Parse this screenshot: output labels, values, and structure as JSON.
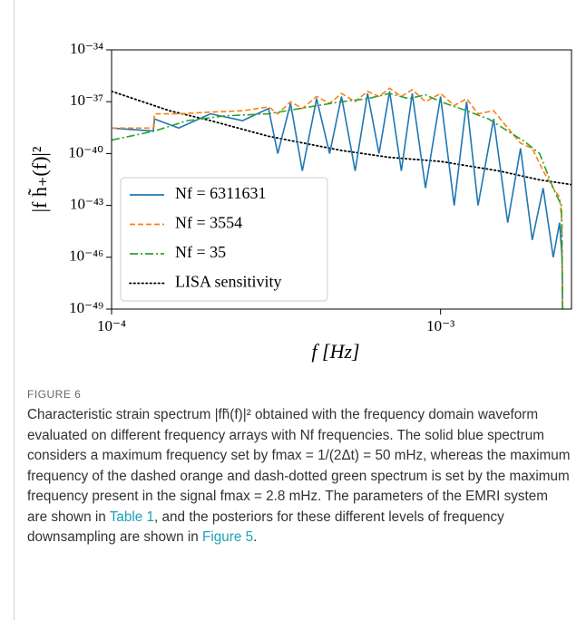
{
  "chart_data": {
    "type": "line",
    "ylabel": "|f h̃₊(f)|²",
    "xlabel": "f  [Hz]",
    "xscale": "log",
    "yscale": "log",
    "xlim": [
      0.0001,
      0.0025
    ],
    "ylim": [
      1e-49,
      1e-34
    ],
    "xticks": [
      {
        "value": 0.0001,
        "label": "10⁻⁴"
      },
      {
        "value": 0.001,
        "label": "10⁻³"
      }
    ],
    "yticks": [
      {
        "value": 1e-34,
        "label": "10⁻³⁴"
      },
      {
        "value": 1e-37,
        "label": "10⁻³⁷"
      },
      {
        "value": 1e-40,
        "label": "10⁻⁴⁰"
      },
      {
        "value": 1e-43,
        "label": "10⁻⁴³"
      },
      {
        "value": 1e-46,
        "label": "10⁻⁴⁶"
      },
      {
        "value": 1e-49,
        "label": "10⁻⁴⁹"
      }
    ],
    "legend": "lower left",
    "x": [
      0.0001,
      0.000134,
      0.000135,
      0.00016,
      0.0002,
      0.00025,
      0.0003,
      0.00032,
      0.00035,
      0.00038,
      0.00042,
      0.00046,
      0.0005,
      0.00055,
      0.0006,
      0.00065,
      0.0007,
      0.00076,
      0.00082,
      0.0009,
      0.001,
      0.0011,
      0.0012,
      0.0013,
      0.00145,
      0.0016,
      0.00175,
      0.0019,
      0.00205,
      0.0022,
      0.0023,
      0.00234,
      0.00235
    ],
    "series": [
      {
        "name": "Nf = 6311631",
        "color": "#1f77b4",
        "linestyle": "solid",
        "values": [
          3e-39,
          2e-39,
          1e-38,
          3e-39,
          2e-38,
          8e-39,
          4e-38,
          1e-40,
          8e-38,
          1e-41,
          1.5e-37,
          1e-40,
          2e-37,
          1e-41,
          3e-37,
          1e-40,
          4e-37,
          1e-41,
          3e-37,
          1e-42,
          2e-37,
          1e-43,
          1e-37,
          1e-43,
          1e-38,
          1e-44,
          2e-40,
          1e-45,
          1e-42,
          1e-46,
          1e-44,
          1e-46,
          1e-49
        ]
      },
      {
        "name": "Nf = 3554",
        "color": "#ff7f0e",
        "linestyle": "dashed",
        "values": [
          3e-39,
          3e-39,
          2e-38,
          2e-38,
          2.5e-38,
          3e-38,
          5e-38,
          2e-38,
          1e-37,
          4e-38,
          2e-37,
          8e-38,
          3e-37,
          1e-37,
          4e-37,
          2e-37,
          6e-37,
          2e-37,
          5e-37,
          1e-37,
          3e-37,
          6e-38,
          1.5e-37,
          2e-38,
          3e-38,
          3e-39,
          4e-40,
          2e-40,
          1e-41,
          1e-42,
          3e-43,
          1e-44,
          1e-49
        ]
      },
      {
        "name": "Nf = 35",
        "color": "#2ca02c",
        "linestyle": "dashdot",
        "x": [
          0.0001,
          0.000135,
          0.00017,
          0.00022,
          0.0003,
          0.0004,
          0.0005,
          0.0006,
          0.0007,
          0.0008,
          0.0009,
          0.001,
          0.0012,
          0.0014,
          0.0016,
          0.0018,
          0.002,
          0.0022,
          0.00233,
          0.00235
        ],
        "values": [
          6e-40,
          2e-39,
          8e-39,
          1.5e-38,
          2e-38,
          5e-38,
          1e-37,
          1.5e-37,
          3e-37,
          1.5e-37,
          2.5e-37,
          1e-37,
          3e-38,
          1e-38,
          2e-39,
          5e-40,
          1e-40,
          1e-42,
          1e-43,
          1e-49
        ]
      },
      {
        "name": "LISA sensitivity",
        "color": "#000000",
        "linestyle": "dotted",
        "x": [
          0.0001,
          0.00015,
          0.0002,
          0.0003,
          0.0005,
          0.0007,
          0.001,
          0.0015,
          0.002,
          0.0025
        ],
        "values": [
          4e-37,
          3e-38,
          8e-39,
          1e-39,
          1.5e-40,
          6e-41,
          3.5e-41,
          1e-41,
          3e-42,
          1.6e-42
        ]
      }
    ]
  },
  "figure": {
    "label": "FIGURE 6",
    "caption": [
      "Characteristic strain spectrum |fh̃(f)|² obtained with the frequency domain waveform evaluated on different frequency arrays with Nf frequencies. The solid blue spectrum considers a maximum frequency set by fmax = 1/(2Δt) = 50 mHz, whereas the maximum frequency of the dashed orange and dash-dotted green spectrum is set by the maximum frequency present in the signal fmax = 2.8 mHz. The parameters of the EMRI system are shown in ",
      "Table 1",
      ", and the posteriors for these different levels of frequency downsampling are shown in ",
      "Figure 5",
      "."
    ]
  }
}
